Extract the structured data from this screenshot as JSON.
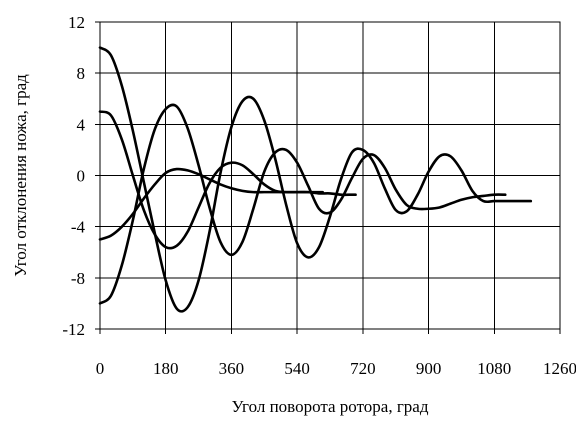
{
  "chart_data": {
    "type": "line",
    "title": "",
    "xlabel": "Угол поворота ротора, град",
    "ylabel": "Угол отклонения ножа, град",
    "xlim": [
      0,
      1260
    ],
    "ylim": [
      -12,
      12
    ],
    "xticks": [
      0,
      180,
      360,
      540,
      720,
      900,
      1080,
      1260
    ],
    "yticks": [
      12,
      8,
      4,
      0,
      -4,
      -8,
      -12
    ],
    "grid": true,
    "legend": "none",
    "line_color": "#000000",
    "series": [
      {
        "x": [
          0,
          30,
          60,
          90,
          120,
          150,
          180,
          210,
          240,
          270,
          300,
          330,
          360,
          390,
          420,
          450,
          480,
          510,
          540,
          570,
          600,
          630,
          660,
          690,
          720,
          750,
          780,
          810,
          840,
          870,
          900,
          930,
          960,
          990,
          1020,
          1050,
          1080,
          1110,
          1140,
          1170,
          1180
        ],
        "y": [
          10,
          9.4,
          7,
          3.5,
          -0.5,
          -4.5,
          -8.2,
          -10.4,
          -10.3,
          -8.2,
          -4.4,
          0.2,
          3.8,
          5.8,
          6.0,
          4.3,
          1.3,
          -2.3,
          -5.3,
          -6.4,
          -5.6,
          -3.2,
          -0.3,
          1.8,
          2.0,
          1.0,
          -1.0,
          -2.7,
          -2.8,
          -1.5,
          0.3,
          1.5,
          1.5,
          0.4,
          -1.2,
          -2.0,
          -2.0,
          -2.0,
          -2.0,
          -2.0,
          -2.0
        ]
      },
      {
        "x": [
          0,
          30,
          60,
          90,
          120,
          150,
          180,
          210,
          240,
          270,
          300,
          330,
          360,
          390,
          420,
          450,
          480,
          510,
          540,
          570,
          600,
          630,
          660,
          690,
          720,
          750,
          780,
          810,
          840,
          870,
          900,
          930,
          960,
          990,
          1020,
          1050,
          1080,
          1110
        ],
        "y": [
          -10,
          -9.4,
          -7,
          -3.5,
          0.5,
          3.6,
          5.2,
          5.4,
          3.7,
          0.8,
          -2.5,
          -5.2,
          -6.2,
          -5.2,
          -2.6,
          0.3,
          1.8,
          2.0,
          1.0,
          -0.8,
          -2.6,
          -2.9,
          -1.9,
          -0.2,
          1.3,
          1.6,
          0.6,
          -1.1,
          -2.3,
          -2.6,
          -2.6,
          -2.5,
          -2.2,
          -1.9,
          -1.7,
          -1.6,
          -1.5,
          -1.5
        ]
      },
      {
        "x": [
          0,
          30,
          60,
          90,
          120,
          150,
          180,
          210,
          240,
          270,
          300,
          330,
          360,
          390,
          420,
          450,
          480,
          510,
          540,
          570,
          600,
          630,
          660,
          690,
          700
        ],
        "y": [
          5,
          4.7,
          2.8,
          0,
          -2.7,
          -4.6,
          -5.6,
          -5.5,
          -4.4,
          -2.5,
          -0.6,
          0.6,
          1.0,
          0.8,
          0.1,
          -0.7,
          -1.2,
          -1.3,
          -1.3,
          -1.3,
          -1.4,
          -1.4,
          -1.5,
          -1.5,
          -1.5
        ]
      },
      {
        "x": [
          0,
          30,
          60,
          90,
          120,
          150,
          180,
          210,
          240,
          270,
          300,
          330,
          360,
          390,
          420,
          450,
          480,
          510,
          540,
          570,
          600,
          610
        ],
        "y": [
          -5,
          -4.7,
          -4,
          -3,
          -1.8,
          -0.7,
          0.2,
          0.5,
          0.4,
          0.1,
          -0.3,
          -0.7,
          -1.0,
          -1.2,
          -1.3,
          -1.3,
          -1.3,
          -1.3,
          -1.3,
          -1.3,
          -1.3,
          -1.3
        ]
      }
    ]
  }
}
